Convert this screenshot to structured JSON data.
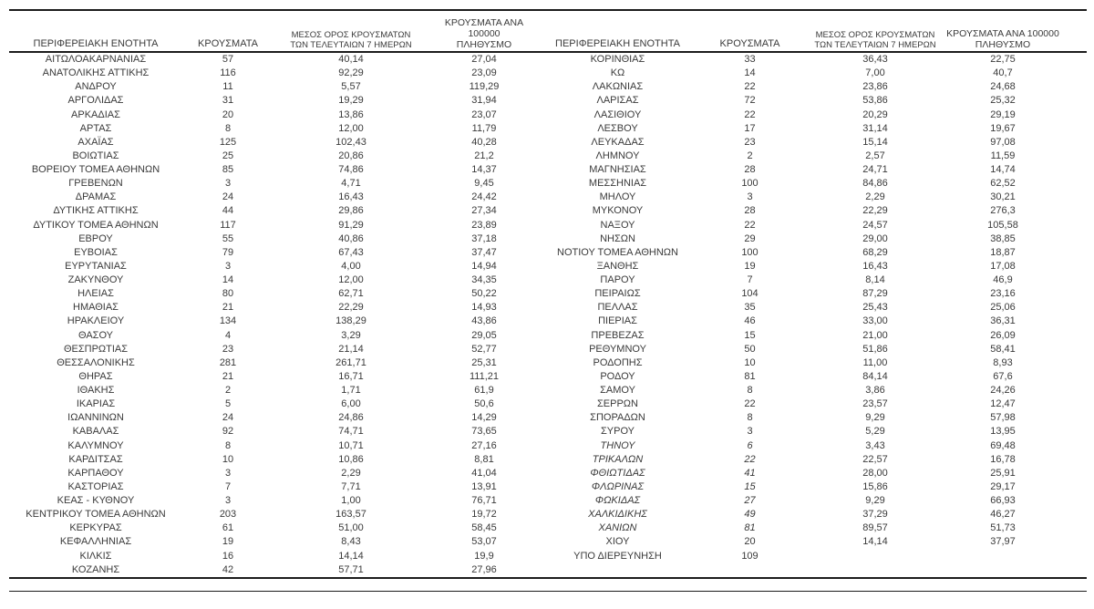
{
  "meta": {
    "background_color": "#ffffff",
    "text_color": "#3a3a3a",
    "rule_color": "#1c1c1c",
    "decimal_separator": ","
  },
  "headers": {
    "region": "ΠΕΡΙΦΕΡΕΙΑΚΗ ΕΝΟΤΗΤΑ",
    "cases": "ΚΡΟΥΣΜΑΤΑ",
    "avg7_line1": "ΜΕΣΟΣ ΟΡΟΣ ΚΡΟΥΣΜΑΤΩΝ",
    "avg7_line2": "ΤΩΝ ΤΕΛΕΥΤΑΙΩΝ 7 ΗΜΕΡΩΝ",
    "per100k_line1": "ΚΡΟΥΣΜΑΤΑ ΑΝΑ 100000",
    "per100k_line2": "ΠΛΗΘΥΣΜΟ"
  },
  "chart_data": {
    "type": "table",
    "columns": [
      "ΠΕΡΙΦΕΡΕΙΑΚΗ ΕΝΟΤΗΤΑ",
      "ΚΡΟΥΣΜΑΤΑ",
      "ΜΕΣΟΣ ΟΡΟΣ ΚΡΟΥΣΜΑΤΩΝ ΤΩΝ ΤΕΛΕΥΤΑΙΩΝ 7 ΗΜΕΡΩΝ",
      "ΚΡΟΥΣΜΑΤΑ ΑΝΑ 100000 ΠΛΗΘΥΣΜΟ"
    ],
    "left_rows": [
      {
        "region": "ΑΙΤΩΛΟΑΚΑΡΝΑΝΙΑΣ",
        "cases": "57",
        "avg7": "40,14",
        "per100k": "27,04"
      },
      {
        "region": "ΑΝΑΤΟΛΙΚΗΣ ΑΤΤΙΚΗΣ",
        "cases": "116",
        "avg7": "92,29",
        "per100k": "23,09"
      },
      {
        "region": "ΑΝΔΡΟΥ",
        "cases": "11",
        "avg7": "5,57",
        "per100k": "119,29"
      },
      {
        "region": "ΑΡΓΟΛΙΔΑΣ",
        "cases": "31",
        "avg7": "19,29",
        "per100k": "31,94"
      },
      {
        "region": "ΑΡΚΑΔΙΑΣ",
        "cases": "20",
        "avg7": "13,86",
        "per100k": "23,07"
      },
      {
        "region": "ΑΡΤΑΣ",
        "cases": "8",
        "avg7": "12,00",
        "per100k": "11,79"
      },
      {
        "region": "ΑΧΑΪΑΣ",
        "cases": "125",
        "avg7": "102,43",
        "per100k": "40,28"
      },
      {
        "region": "ΒΟΙΩΤΙΑΣ",
        "cases": "25",
        "avg7": "20,86",
        "per100k": "21,2"
      },
      {
        "region": "ΒΟΡΕΙΟΥ ΤΟΜΕΑ ΑΘΗΝΩΝ",
        "cases": "85",
        "avg7": "74,86",
        "per100k": "14,37"
      },
      {
        "region": "ΓΡΕΒΕΝΩΝ",
        "cases": "3",
        "avg7": "4,71",
        "per100k": "9,45"
      },
      {
        "region": "ΔΡΑΜΑΣ",
        "cases": "24",
        "avg7": "16,43",
        "per100k": "24,42"
      },
      {
        "region": "ΔΥΤΙΚΗΣ ΑΤΤΙΚΗΣ",
        "cases": "44",
        "avg7": "29,86",
        "per100k": "27,34"
      },
      {
        "region": "ΔΥΤΙΚΟΥ ΤΟΜΕΑ ΑΘΗΝΩΝ",
        "cases": "117",
        "avg7": "91,29",
        "per100k": "23,89"
      },
      {
        "region": "ΕΒΡΟΥ",
        "cases": "55",
        "avg7": "40,86",
        "per100k": "37,18"
      },
      {
        "region": "ΕΥΒΟΙΑΣ",
        "cases": "79",
        "avg7": "67,43",
        "per100k": "37,47"
      },
      {
        "region": "ΕΥΡΥΤΑΝΙΑΣ",
        "cases": "3",
        "avg7": "4,00",
        "per100k": "14,94"
      },
      {
        "region": "ΖΑΚΥΝΘΟΥ",
        "cases": "14",
        "avg7": "12,00",
        "per100k": "34,35"
      },
      {
        "region": "ΗΛΕΙΑΣ",
        "cases": "80",
        "avg7": "62,71",
        "per100k": "50,22"
      },
      {
        "region": "ΗΜΑΘΙΑΣ",
        "cases": "21",
        "avg7": "22,29",
        "per100k": "14,93"
      },
      {
        "region": "ΗΡΑΚΛΕΙΟΥ",
        "cases": "134",
        "avg7": "138,29",
        "per100k": "43,86"
      },
      {
        "region": "ΘΑΣΟΥ",
        "cases": "4",
        "avg7": "3,29",
        "per100k": "29,05"
      },
      {
        "region": "ΘΕΣΠΡΩΤΙΑΣ",
        "cases": "23",
        "avg7": "21,14",
        "per100k": "52,77"
      },
      {
        "region": "ΘΕΣΣΑΛΟΝΙΚΗΣ",
        "cases": "281",
        "avg7": "261,71",
        "per100k": "25,31"
      },
      {
        "region": "ΘΗΡΑΣ",
        "cases": "21",
        "avg7": "16,71",
        "per100k": "111,21"
      },
      {
        "region": "ΙΘΑΚΗΣ",
        "cases": "2",
        "avg7": "1,71",
        "per100k": "61,9"
      },
      {
        "region": "ΙΚΑΡΙΑΣ",
        "cases": "5",
        "avg7": "6,00",
        "per100k": "50,6"
      },
      {
        "region": "ΙΩΑΝΝΙΝΩΝ",
        "cases": "24",
        "avg7": "24,86",
        "per100k": "14,29"
      },
      {
        "region": "ΚΑΒΑΛΑΣ",
        "cases": "92",
        "avg7": "74,71",
        "per100k": "73,65"
      },
      {
        "region": "ΚΑΛΥΜΝΟΥ",
        "cases": "8",
        "avg7": "10,71",
        "per100k": "27,16"
      },
      {
        "region": "ΚΑΡΔΙΤΣΑΣ",
        "cases": "10",
        "avg7": "10,86",
        "per100k": "8,81"
      },
      {
        "region": "ΚΑΡΠΑΘΟΥ",
        "cases": "3",
        "avg7": "2,29",
        "per100k": "41,04"
      },
      {
        "region": "ΚΑΣΤΟΡΙΑΣ",
        "cases": "7",
        "avg7": "7,71",
        "per100k": "13,91"
      },
      {
        "region": "ΚΕΑΣ - ΚΥΘΝΟΥ",
        "cases": "3",
        "avg7": "1,00",
        "per100k": "76,71"
      },
      {
        "region": "ΚΕΝΤΡΙΚΟΥ ΤΟΜΕΑ ΑΘΗΝΩΝ",
        "cases": "203",
        "avg7": "163,57",
        "per100k": "19,72"
      },
      {
        "region": "ΚΕΡΚΥΡΑΣ",
        "cases": "61",
        "avg7": "51,00",
        "per100k": "58,45"
      },
      {
        "region": "ΚΕΦΑΛΛΗΝΙΑΣ",
        "cases": "19",
        "avg7": "8,43",
        "per100k": "53,07"
      },
      {
        "region": "ΚΙΛΚΙΣ",
        "cases": "16",
        "avg7": "14,14",
        "per100k": "19,9"
      },
      {
        "region": "ΚΟΖΑΝΗΣ",
        "cases": "42",
        "avg7": "57,71",
        "per100k": "27,96"
      }
    ],
    "right_rows": [
      {
        "region": "ΚΟΡΙΝΘΙΑΣ",
        "cases": "33",
        "avg7": "36,43",
        "per100k": "22,75"
      },
      {
        "region": "ΚΩ",
        "cases": "14",
        "avg7": "7,00",
        "per100k": "40,7"
      },
      {
        "region": "ΛΑΚΩΝΙΑΣ",
        "cases": "22",
        "avg7": "23,86",
        "per100k": "24,68"
      },
      {
        "region": "ΛΑΡΙΣΑΣ",
        "cases": "72",
        "avg7": "53,86",
        "per100k": "25,32"
      },
      {
        "region": "ΛΑΣΙΘΙΟΥ",
        "cases": "22",
        "avg7": "20,29",
        "per100k": "29,19"
      },
      {
        "region": "ΛΕΣΒΟΥ",
        "cases": "17",
        "avg7": "31,14",
        "per100k": "19,67"
      },
      {
        "region": "ΛΕΥΚΑΔΑΣ",
        "cases": "23",
        "avg7": "15,14",
        "per100k": "97,08"
      },
      {
        "region": "ΛΗΜΝΟΥ",
        "cases": "2",
        "avg7": "2,57",
        "per100k": "11,59"
      },
      {
        "region": "ΜΑΓΝΗΣΙΑΣ",
        "cases": "28",
        "avg7": "24,71",
        "per100k": "14,74"
      },
      {
        "region": "ΜΕΣΣΗΝΙΑΣ",
        "cases": "100",
        "avg7": "84,86",
        "per100k": "62,52"
      },
      {
        "region": "ΜΗΛΟΥ",
        "cases": "3",
        "avg7": "2,29",
        "per100k": "30,21"
      },
      {
        "region": "ΜΥΚΟΝΟΥ",
        "cases": "28",
        "avg7": "22,29",
        "per100k": "276,3"
      },
      {
        "region": "ΝΑΞΟΥ",
        "cases": "22",
        "avg7": "24,57",
        "per100k": "105,58"
      },
      {
        "region": "ΝΗΣΩΝ",
        "cases": "29",
        "avg7": "29,00",
        "per100k": "38,85"
      },
      {
        "region": "ΝΟΤΙΟΥ ΤΟΜΕΑ ΑΘΗΝΩΝ",
        "cases": "100",
        "avg7": "68,29",
        "per100k": "18,87"
      },
      {
        "region": "ΞΑΝΘΗΣ",
        "cases": "19",
        "avg7": "16,43",
        "per100k": "17,08"
      },
      {
        "region": "ΠΑΡΟΥ",
        "cases": "7",
        "avg7": "8,14",
        "per100k": "46,9"
      },
      {
        "region": "ΠΕΙΡΑΙΩΣ",
        "cases": "104",
        "avg7": "87,29",
        "per100k": "23,16"
      },
      {
        "region": "ΠΕΛΛΑΣ",
        "cases": "35",
        "avg7": "25,43",
        "per100k": "25,06"
      },
      {
        "region": "ΠΙΕΡΙΑΣ",
        "cases": "46",
        "avg7": "33,00",
        "per100k": "36,31"
      },
      {
        "region": "ΠΡΕΒΕΖΑΣ",
        "cases": "15",
        "avg7": "21,00",
        "per100k": "26,09"
      },
      {
        "region": "ΡΕΘΥΜΝΟΥ",
        "cases": "50",
        "avg7": "51,86",
        "per100k": "58,41"
      },
      {
        "region": "ΡΟΔΟΠΗΣ",
        "cases": "10",
        "avg7": "11,00",
        "per100k": "8,93"
      },
      {
        "region": "ΡΟΔΟΥ",
        "cases": "81",
        "avg7": "84,14",
        "per100k": "67,6"
      },
      {
        "region": "ΣΑΜΟΥ",
        "cases": "8",
        "avg7": "3,86",
        "per100k": "24,26"
      },
      {
        "region": "ΣΕΡΡΩΝ",
        "cases": "22",
        "avg7": "23,57",
        "per100k": "12,47"
      },
      {
        "region": "ΣΠΟΡΑΔΩΝ",
        "cases": "8",
        "avg7": "9,29",
        "per100k": "57,98"
      },
      {
        "region": "ΣΥΡΟΥ",
        "cases": "3",
        "avg7": "5,29",
        "per100k": "13,95"
      },
      {
        "region": "ΤΗΝΟΥ",
        "cases": "6",
        "avg7": "3,43",
        "per100k": "69,48",
        "italic": true
      },
      {
        "region": "ΤΡΙΚΑΛΩΝ",
        "cases": "22",
        "avg7": "22,57",
        "per100k": "16,78",
        "italic": true
      },
      {
        "region": "ΦΘΙΩΤΙΔΑΣ",
        "cases": "41",
        "avg7": "28,00",
        "per100k": "25,91",
        "italic": true
      },
      {
        "region": "ΦΛΩΡΙΝΑΣ",
        "cases": "15",
        "avg7": "15,86",
        "per100k": "29,17",
        "italic": true
      },
      {
        "region": "ΦΩΚΙΔΑΣ",
        "cases": "27",
        "avg7": "9,29",
        "per100k": "66,93",
        "italic": true
      },
      {
        "region": "ΧΑΛΚΙΔΙΚΗΣ",
        "cases": "49",
        "avg7": "37,29",
        "per100k": "46,27",
        "italic": true
      },
      {
        "region": "ΧΑΝΙΩΝ",
        "cases": "81",
        "avg7": "89,57",
        "per100k": "51,73",
        "italic": true
      },
      {
        "region": "ΧΙΟΥ",
        "cases": "20",
        "avg7": "14,14",
        "per100k": "37,97"
      },
      {
        "region": "ΥΠΟ ΔΙΕΡΕΥΝΗΣΗ",
        "cases": "109",
        "avg7": "",
        "per100k": ""
      }
    ]
  }
}
